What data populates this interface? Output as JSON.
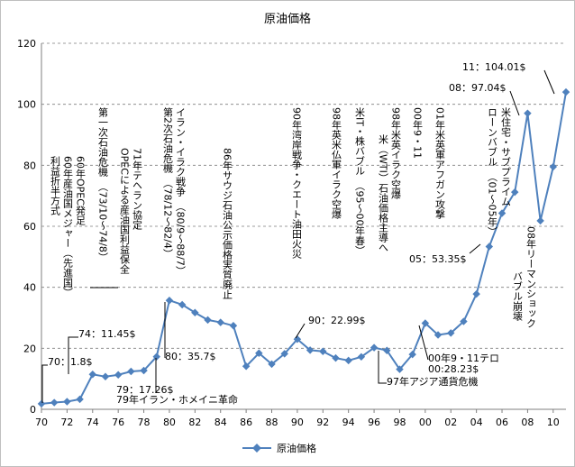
{
  "chart_data": {
    "type": "line",
    "title": "原油価格",
    "xlabel": "",
    "ylabel": "",
    "ylim": [
      0,
      120
    ],
    "yticks": [
      0,
      20,
      40,
      60,
      80,
      100,
      120
    ],
    "xlim": [
      1970,
      2011
    ],
    "x_tick_labels": [
      "70",
      "72",
      "74",
      "76",
      "78",
      "80",
      "82",
      "84",
      "86",
      "88",
      "90",
      "92",
      "94",
      "96",
      "98",
      "00",
      "02",
      "04",
      "06",
      "08",
      "10"
    ],
    "x_tick_values": [
      1970,
      1972,
      1974,
      1976,
      1978,
      1980,
      1982,
      1984,
      1986,
      1988,
      1990,
      1992,
      1994,
      1996,
      1998,
      2000,
      2002,
      2004,
      2006,
      2008,
      2010
    ],
    "grid": "horizontal dashed",
    "legend_position": "bottom",
    "series": [
      {
        "name": "原油価格",
        "color": "#4f81bd",
        "x": [
          1970,
          1971,
          1972,
          1973,
          1974,
          1975,
          1976,
          1977,
          1978,
          1979,
          1980,
          1981,
          1982,
          1983,
          1984,
          1985,
          1986,
          1987,
          1988,
          1989,
          1990,
          1991,
          1992,
          1993,
          1994,
          1995,
          1996,
          1997,
          1998,
          1999,
          2000,
          2001,
          2002,
          2003,
          2004,
          2005,
          2006,
          2007,
          2008,
          2009,
          2010,
          2011
        ],
        "values": [
          1.8,
          2.2,
          2.5,
          3.3,
          11.45,
          10.7,
          11.3,
          12.4,
          12.7,
          17.26,
          35.7,
          34.3,
          31.7,
          29.3,
          28.5,
          27.4,
          14.1,
          18.4,
          14.8,
          18.2,
          22.99,
          19.4,
          19.0,
          16.8,
          16.0,
          17.2,
          20.2,
          19.3,
          13.1,
          18.0,
          28.23,
          24.4,
          25.0,
          28.8,
          37.8,
          53.35,
          64.3,
          71.2,
          97.04,
          61.8,
          79.5,
          104.01
        ]
      }
    ],
    "annotations_horizontal": [
      {
        "id": "a70",
        "text": "70：1.8$"
      },
      {
        "id": "a74",
        "text": "74：11.45$"
      },
      {
        "id": "a79a",
        "text": "79：17.26$"
      },
      {
        "id": "a79b",
        "text": "79年イラン・ホメイニ革命"
      },
      {
        "id": "a80",
        "text": "80：35.7$"
      },
      {
        "id": "a90",
        "text": "90：22.99$"
      },
      {
        "id": "a97",
        "text": "97年アジア通貨危機"
      },
      {
        "id": "a00a",
        "text": "00年9・11テロ"
      },
      {
        "id": "a00b",
        "text": "00:28.23$"
      },
      {
        "id": "a05",
        "text": "05：53.35$"
      },
      {
        "id": "a08",
        "text": "08：97.04$"
      },
      {
        "id": "a11",
        "text": "11：104.01$"
      }
    ],
    "annotations_vertical": [
      {
        "id": "v60a",
        "text": "60年OPEC発足"
      },
      {
        "id": "v60b",
        "text": "60年産油国メジャー（先進国）"
      },
      {
        "id": "v60c",
        "text": "利益折半方式"
      },
      {
        "id": "v73",
        "text": "第一次石油危機　（73/10～74/8）"
      },
      {
        "id": "v71a",
        "text": "71年テヘラン協定"
      },
      {
        "id": "v71b",
        "text": "OPECによる産油国利益保全"
      },
      {
        "id": "v80a",
        "text": "イラン・イラク戦争　（80/9～88/7）"
      },
      {
        "id": "v80b",
        "text": "第2次石油危機　（78/12～82/4）"
      },
      {
        "id": "v86",
        "text": "86年サウジ石油公示価格実質廃止"
      },
      {
        "id": "v90",
        "text": "90年湾岸戦争・クエート油田火災"
      },
      {
        "id": "v98",
        "text": "98年英米仏軍イラク空爆"
      },
      {
        "id": "v99",
        "text": "米IT・株バブル　（95～00年春）"
      },
      {
        "id": "v98b",
        "text": "98年米英イラク空爆"
      },
      {
        "id": "v98c",
        "text": "米（WTI）石油価格主導へ"
      },
      {
        "id": "v00",
        "text": "00年9・11"
      },
      {
        "id": "v01",
        "text": "01年米英軍アフガン攻撃"
      },
      {
        "id": "v07a",
        "text": "米住宅・サブプライム"
      },
      {
        "id": "v07b",
        "text": "ローンバブル　（01～05年）"
      },
      {
        "id": "v08a",
        "text": "08年リーマンショック"
      },
      {
        "id": "v08b",
        "text": "バブル崩壊"
      }
    ]
  }
}
